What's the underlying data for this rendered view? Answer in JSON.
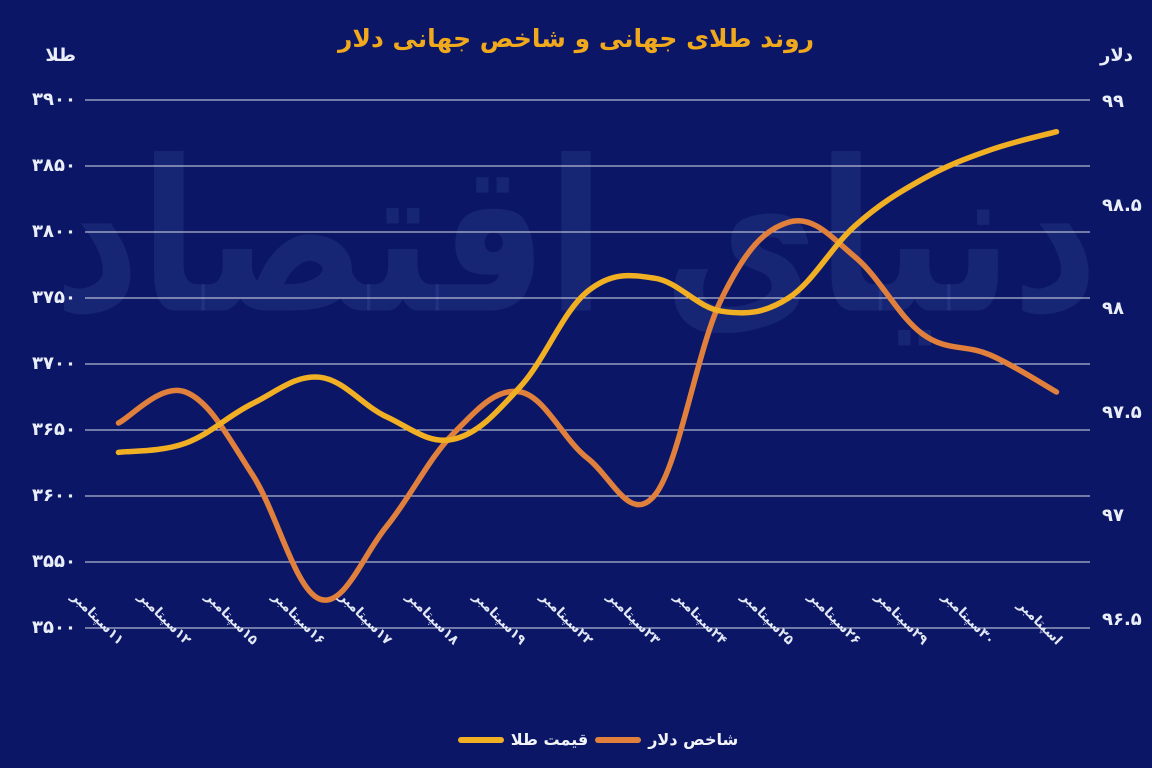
{
  "title": "روند طلای جهانی و شاخص جهانی دلار",
  "watermark": "دنیای اقتصاد",
  "colors": {
    "background": "#0B1766",
    "title": "#F0A81C",
    "axis_text": "#EAEEF8",
    "gridline": "#FFFFFF",
    "gold_line": "#F1B024",
    "dollar_line": "#E0803C",
    "watermark": "#1B2A7A"
  },
  "legend": {
    "items": [
      {
        "label": "قیمت طلا",
        "series": "gold",
        "color": "#F1B024"
      },
      {
        "label": "شاخص دلار",
        "series": "dollar",
        "color": "#E0803C"
      }
    ]
  },
  "chart_data": {
    "type": "line",
    "smooth": true,
    "grid": true,
    "legend_position": "bottom",
    "title": "روند طلای جهانی و شاخص جهانی دلار",
    "categories": [
      "۱۱سپتامبر",
      "۱۲سپتامبر",
      "۱۵سپتامبر",
      "۱۶سپتامبر",
      "۱۷سپتامبر",
      "۱۸سپتامبر",
      "۱۹سپتامبر",
      "۲۲سپتامبر",
      "۲۳سپتامبر",
      "۲۴سپتامبر",
      "۲۵سپتامبر",
      "۲۶سپتامبر",
      "۲۹سپتامبر",
      "۳۰سپتامبر",
      "اسپتامبر"
    ],
    "series": [
      {
        "name": "شاخص دلار",
        "axis": "right",
        "color": "#E0803C",
        "values": [
          97.45,
          97.6,
          97.2,
          96.6,
          96.95,
          97.4,
          97.6,
          97.28,
          97.1,
          98.05,
          98.42,
          98.25,
          97.88,
          97.78,
          97.6
        ]
      },
      {
        "name": "قیمت طلا",
        "axis": "left",
        "color": "#F1B024",
        "values": [
          3633,
          3640,
          3670,
          3690,
          3660,
          3643,
          3683,
          3755,
          3765,
          3740,
          3750,
          3805,
          3840,
          3862,
          3876
        ]
      }
    ],
    "left_axis": {
      "label": "طلا",
      "ticks": [
        "۳۹۰۰",
        "۳۸۵۰",
        "۳۸۰۰",
        "۳۷۵۰",
        "۳۷۰۰",
        "۳۶۵۰",
        "۳۶۰۰",
        "۳۵۵۰",
        "۳۵۰۰"
      ],
      "tick_values": [
        3900,
        3850,
        3800,
        3750,
        3700,
        3650,
        3600,
        3550,
        3500
      ],
      "range": [
        3500,
        3900
      ]
    },
    "right_axis": {
      "label": "دلار",
      "ticks": [
        "۹۹",
        "۹۸.۵",
        "۹۸",
        "۹۷.۵",
        "۹۷",
        "۹۶.۵"
      ],
      "tick_values": [
        99,
        98.5,
        98,
        97.5,
        97,
        96.5
      ],
      "range": [
        96.46,
        99.01
      ]
    }
  }
}
